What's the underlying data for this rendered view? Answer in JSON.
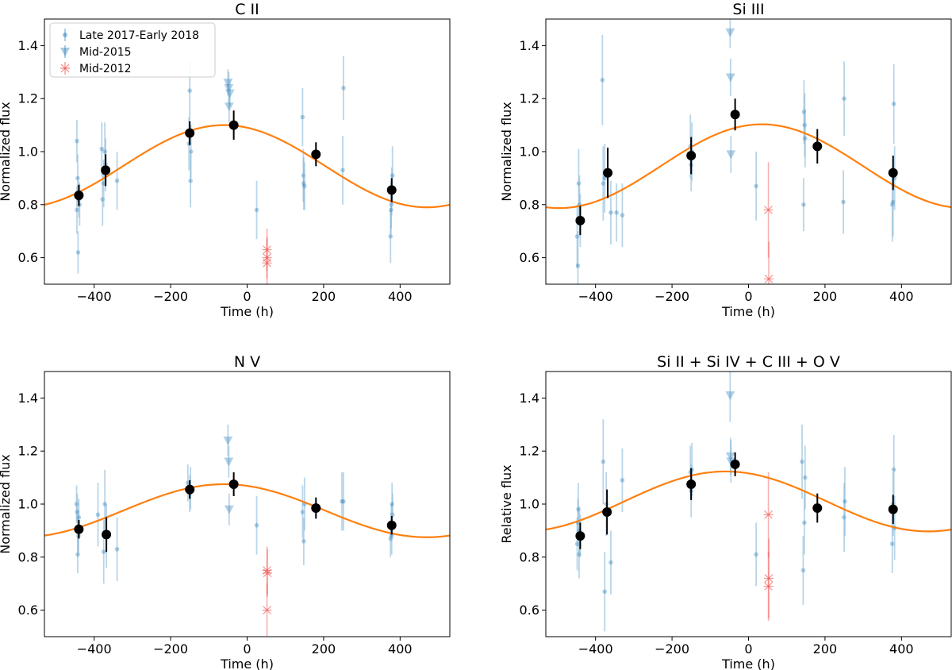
{
  "chart_data": [
    {
      "type": "scatter",
      "title": "C II",
      "xlabel": "Time (h)",
      "ylabel": "Normalized flux",
      "xlim": [
        -530,
        530
      ],
      "ylim": [
        0.5,
        1.5
      ],
      "xticks": [
        -400,
        -200,
        0,
        200,
        400
      ],
      "yticks": [
        0.6,
        0.8,
        1.0,
        1.2,
        1.4
      ],
      "xtick_labels": [
        "−400",
        "−200",
        "0",
        "200",
        "400"
      ],
      "ytick_labels": [
        "0.6",
        "0.8",
        "1.0",
        "1.2",
        "1.4"
      ],
      "legend": {
        "placement": "top-left",
        "entries": [
          "Late 2017-Early 2018",
          "Mid-2015",
          "Mid-2012"
        ]
      },
      "model": {
        "mean": 0.945,
        "amplitude": 0.155,
        "phase_peak_h": -60,
        "period_h": 1060
      },
      "series": [
        {
          "name": "Late 2017-Early 2018",
          "marker": "dot",
          "color": "#1f77b4",
          "points": [
            [
              -445,
              1.04,
              0.08
            ],
            [
              -445,
              0.78,
              0.09
            ],
            [
              -443,
              0.9,
              0.09
            ],
            [
              -442,
              0.62,
              0.08
            ],
            [
              -440,
              0.82,
              0.07
            ],
            [
              -438,
              0.8,
              0.08
            ],
            [
              -380,
              1.01,
              0.1
            ],
            [
              -378,
              0.82,
              0.1
            ],
            [
              -375,
              0.88,
              0.09
            ],
            [
              -370,
              0.95,
              0.1
            ],
            [
              -372,
              1.0,
              0.11
            ],
            [
              -340,
              0.89,
              0.11
            ],
            [
              -150,
              1.23,
              0.11
            ],
            [
              -148,
              0.89,
              0.1
            ],
            [
              -147,
              1.0,
              0.1
            ],
            [
              -152,
              1.03,
              0.1
            ],
            [
              25,
              0.78,
              0.11
            ],
            [
              145,
              1.13,
              0.11
            ],
            [
              147,
              0.91,
              0.1
            ],
            [
              148,
              0.88,
              0.1
            ],
            [
              150,
              0.87,
              0.09
            ],
            [
              250,
              0.93,
              0.13
            ],
            [
              252,
              1.24,
              0.12
            ],
            [
              375,
              0.68,
              0.1
            ],
            [
              377,
              0.8,
              0.09
            ],
            [
              378,
              0.85,
              0.09
            ],
            [
              380,
              0.91,
              0.11
            ],
            [
              376,
              0.78,
              0.1
            ]
          ]
        },
        {
          "name": "Mid-2015",
          "marker": "triangle",
          "color": "#1f77b4",
          "points": [
            [
              -50,
              1.26,
              0.05
            ],
            [
              -48,
              1.24,
              0.06
            ],
            [
              -45,
              1.22,
              0.05
            ],
            [
              -47,
              1.17,
              0.06
            ]
          ]
        },
        {
          "name": "Mid-2012",
          "marker": "cross",
          "color": "#ef5350",
          "points": [
            [
              52,
              0.63,
              0.08
            ],
            [
              52,
              0.6,
              0.08
            ],
            [
              52,
              0.58,
              0.09
            ]
          ]
        },
        {
          "name": "",
          "marker": "big-dot",
          "color": "#000000",
          "points": [
            [
              -440,
              0.835,
              0.04
            ],
            [
              -370,
              0.93,
              0.06
            ],
            [
              -150,
              1.07,
              0.045
            ],
            [
              -35,
              1.1,
              0.055
            ],
            [
              180,
              0.99,
              0.045
            ],
            [
              378,
              0.855,
              0.045
            ]
          ]
        }
      ]
    },
    {
      "type": "scatter",
      "title": "Si III",
      "xlabel": "Time (h)",
      "ylabel": "Normalized flux",
      "xlim": [
        -530,
        530
      ],
      "ylim": [
        0.5,
        1.5
      ],
      "xticks": [
        -400,
        -200,
        0,
        200,
        400
      ],
      "yticks": [
        0.6,
        0.8,
        1.0,
        1.2,
        1.4
      ],
      "xtick_labels": [
        "−400",
        "−200",
        "0",
        "200",
        "400"
      ],
      "ytick_labels": [
        "0.6",
        "0.8",
        "1.0",
        "1.2",
        "1.4"
      ],
      "model": {
        "mean": 0.945,
        "amplitude": 0.158,
        "phase_peak_h": 35,
        "period_h": 1060
      },
      "series": [
        {
          "name": "Late 2017-Early 2018",
          "marker": "dot",
          "color": "#1f77b4",
          "points": [
            [
              -448,
              0.68,
              0.12
            ],
            [
              -446,
              0.57,
              0.13
            ],
            [
              -444,
              0.88,
              0.13
            ],
            [
              -442,
              0.8,
              0.11
            ],
            [
              -440,
              0.74,
              0.1
            ],
            [
              -382,
              1.27,
              0.17
            ],
            [
              -380,
              0.88,
              0.14
            ],
            [
              -376,
              0.9,
              0.13
            ],
            [
              -360,
              0.77,
              0.12
            ],
            [
              -345,
              0.77,
              0.11
            ],
            [
              -330,
              0.76,
              0.12
            ],
            [
              -152,
              1.02,
              0.12
            ],
            [
              -150,
              0.95,
              0.1
            ],
            [
              -148,
              1.0,
              0.11
            ],
            [
              20,
              0.87,
              0.13
            ],
            [
              145,
              1.15,
              0.12
            ],
            [
              147,
              1.1,
              0.12
            ],
            [
              148,
              1.05,
              0.11
            ],
            [
              144,
              0.8,
              0.1
            ],
            [
              250,
              1.2,
              0.14
            ],
            [
              248,
              0.81,
              0.12
            ],
            [
              376,
              0.8,
              0.14
            ],
            [
              378,
              0.81,
              0.13
            ],
            [
              380,
              1.18,
              0.15
            ],
            [
              382,
              0.9,
              0.12
            ]
          ]
        },
        {
          "name": "Mid-2015",
          "marker": "triangle",
          "color": "#1f77b4",
          "points": [
            [
              -48,
              1.45,
              0.06
            ],
            [
              -47,
              1.28,
              0.07
            ],
            [
              -46,
              0.99,
              0.07
            ]
          ]
        },
        {
          "name": "Mid-2012",
          "marker": "cross",
          "color": "#ef5350",
          "points": [
            [
              52,
              0.78,
              0.18
            ],
            [
              53,
              0.52,
              0.14
            ]
          ]
        },
        {
          "name": "",
          "marker": "big-dot",
          "color": "#000000",
          "points": [
            [
              -440,
              0.74,
              0.055
            ],
            [
              -368,
              0.92,
              0.095
            ],
            [
              -150,
              0.985,
              0.07
            ],
            [
              -35,
              1.14,
              0.06
            ],
            [
              180,
              1.02,
              0.065
            ],
            [
              378,
              0.92,
              0.065
            ]
          ]
        }
      ]
    },
    {
      "type": "scatter",
      "title": "N V",
      "xlabel": "Time (h)",
      "ylabel": "Normalized flux",
      "xlim": [
        -530,
        530
      ],
      "ylim": [
        0.5,
        1.5
      ],
      "xticks": [
        -400,
        -200,
        0,
        200,
        400
      ],
      "yticks": [
        0.6,
        0.8,
        1.0,
        1.2,
        1.4
      ],
      "xtick_labels": [
        "−400",
        "−200",
        "0",
        "200",
        "400"
      ],
      "ytick_labels": [
        "0.6",
        "0.8",
        "1.0",
        "1.2",
        "1.4"
      ],
      "model": {
        "mean": 0.975,
        "amplitude": 0.1,
        "phase_peak_h": -60,
        "period_h": 1060
      },
      "series": [
        {
          "name": "Late 2017-Early 2018",
          "marker": "dot",
          "color": "#1f77b4",
          "points": [
            [
              -446,
              1.0,
              0.07
            ],
            [
              -444,
              0.97,
              0.07
            ],
            [
              -443,
              0.81,
              0.07
            ],
            [
              -441,
              0.88,
              0.07
            ],
            [
              -440,
              0.95,
              0.07
            ],
            [
              -442,
              0.9,
              0.08
            ],
            [
              -390,
              0.96,
              0.12
            ],
            [
              -375,
              0.82,
              0.12
            ],
            [
              -372,
              1.0,
              0.13
            ],
            [
              -368,
              0.88,
              0.12
            ],
            [
              -340,
              0.83,
              0.12
            ],
            [
              -155,
              1.08,
              0.07
            ],
            [
              -150,
              1.04,
              0.07
            ],
            [
              -148,
              1.06,
              0.08
            ],
            [
              25,
              0.92,
              0.11
            ],
            [
              145,
              0.97,
              0.1
            ],
            [
              148,
              0.86,
              0.09
            ],
            [
              150,
              1.0,
              0.1
            ],
            [
              248,
              1.01,
              0.11
            ],
            [
              252,
              1.01,
              0.11
            ],
            [
              375,
              0.87,
              0.07
            ],
            [
              377,
              0.93,
              0.07
            ],
            [
              378,
              0.88,
              0.07
            ],
            [
              380,
              0.96,
              0.08
            ],
            [
              379,
              1.0,
              0.08
            ]
          ]
        },
        {
          "name": "Mid-2015",
          "marker": "triangle",
          "color": "#1f77b4",
          "points": [
            [
              -50,
              1.24,
              0.06
            ],
            [
              -48,
              1.16,
              0.06
            ],
            [
              -47,
              0.98,
              0.06
            ]
          ]
        },
        {
          "name": "Mid-2012",
          "marker": "cross",
          "color": "#ef5350",
          "points": [
            [
              52,
              0.75,
              0.09
            ],
            [
              53,
              0.74,
              0.09
            ],
            [
              52,
              0.6,
              0.1
            ]
          ]
        },
        {
          "name": "",
          "marker": "big-dot",
          "color": "#000000",
          "points": [
            [
              -440,
              0.905,
              0.035
            ],
            [
              -368,
              0.885,
              0.065
            ],
            [
              -150,
              1.055,
              0.035
            ],
            [
              -35,
              1.075,
              0.045
            ],
            [
              180,
              0.985,
              0.04
            ],
            [
              378,
              0.92,
              0.035
            ]
          ]
        }
      ]
    },
    {
      "type": "scatter",
      "title": "Si II + Si IV + C III + O V",
      "xlabel": "Time (h)",
      "ylabel": "Relative flux",
      "xlim": [
        -530,
        530
      ],
      "ylim": [
        0.5,
        1.5
      ],
      "xticks": [
        -400,
        -200,
        0,
        200,
        400
      ],
      "yticks": [
        0.6,
        0.8,
        1.0,
        1.2,
        1.4
      ],
      "xtick_labels": [
        "−400",
        "−200",
        "0",
        "200",
        "400"
      ],
      "ytick_labels": [
        "0.6",
        "0.8",
        "1.0",
        "1.2",
        "1.4"
      ],
      "model": {
        "mean": 1.01,
        "amplitude": 0.113,
        "phase_peak_h": -60,
        "period_h": 1060
      },
      "series": [
        {
          "name": "Late 2017-Early 2018",
          "marker": "dot",
          "color": "#1f77b4",
          "points": [
            [
              -448,
              0.85,
              0.1
            ],
            [
              -446,
              0.93,
              0.09
            ],
            [
              -445,
              0.98,
              0.1
            ],
            [
              -443,
              0.81,
              0.09
            ],
            [
              -442,
              0.9,
              0.09
            ],
            [
              -440,
              0.88,
              0.08
            ],
            [
              -380,
              1.16,
              0.16
            ],
            [
              -376,
              0.67,
              0.15
            ],
            [
              -372,
              1.0,
              0.12
            ],
            [
              -360,
              0.78,
              0.12
            ],
            [
              -330,
              1.09,
              0.12
            ],
            [
              -152,
              1.12,
              0.1
            ],
            [
              -150,
              1.05,
              0.1
            ],
            [
              -148,
              1.13,
              0.1
            ],
            [
              20,
              0.81,
              0.12
            ],
            [
              140,
              1.16,
              0.14
            ],
            [
              143,
              0.75,
              0.13
            ],
            [
              146,
              0.93,
              0.12
            ],
            [
              148,
              1.1,
              0.12
            ],
            [
              250,
              0.95,
              0.13
            ],
            [
              252,
              1.01,
              0.13
            ],
            [
              376,
              0.85,
              0.11
            ],
            [
              378,
              1.0,
              0.12
            ],
            [
              380,
              1.13,
              0.13
            ],
            [
              382,
              0.91,
              0.12
            ]
          ]
        },
        {
          "name": "Mid-2015",
          "marker": "triangle",
          "color": "#1f77b4",
          "points": [
            [
              -48,
              1.41,
              0.1
            ],
            [
              -47,
              1.18,
              0.07
            ],
            [
              -46,
              1.16,
              0.08
            ]
          ]
        },
        {
          "name": "Mid-2012",
          "marker": "cross",
          "color": "#ef5350",
          "points": [
            [
              52,
              0.96,
              0.16
            ],
            [
              53,
              0.72,
              0.15
            ],
            [
              52,
              0.69,
              0.13
            ]
          ]
        },
        {
          "name": "",
          "marker": "big-dot",
          "color": "#000000",
          "points": [
            [
              -440,
              0.88,
              0.05
            ],
            [
              -370,
              0.97,
              0.085
            ],
            [
              -150,
              1.075,
              0.06
            ],
            [
              -35,
              1.15,
              0.045
            ],
            [
              180,
              0.985,
              0.055
            ],
            [
              378,
              0.98,
              0.055
            ]
          ]
        }
      ]
    }
  ]
}
